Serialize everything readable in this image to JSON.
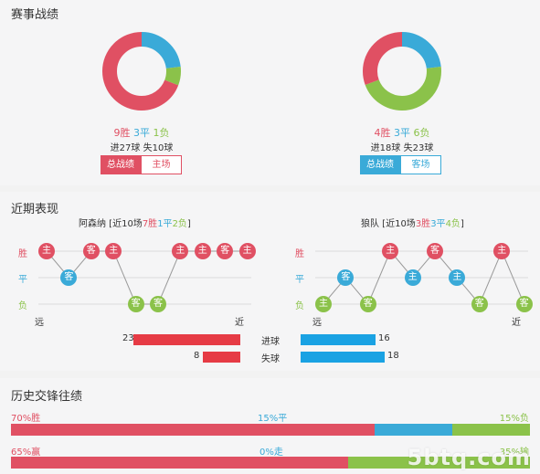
{
  "sections": {
    "overall": "赛事战绩",
    "recent": "近期表现",
    "history": "历史交锋往绩"
  },
  "home": {
    "wins": "9胜",
    "draws": "3平",
    "losses": "1负",
    "goals_for": "进27球",
    "goals_against": "失10球",
    "tab_total": "总战绩",
    "tab_venue": "主场",
    "donut": {
      "win": 9,
      "draw": 3,
      "loss": 1
    },
    "team_label": "阿森纳 [近10场",
    "recent_w": "7胜",
    "recent_d": "1平",
    "recent_l": "2负",
    "recent_end": "]",
    "form": [
      "W",
      "D",
      "W",
      "W",
      "L",
      "L",
      "W",
      "W",
      "W",
      "W"
    ],
    "venue": [
      "主",
      "客",
      "客",
      "主",
      "客",
      "客",
      "主",
      "主",
      "客",
      "主"
    ],
    "goals_for_num": 23,
    "goals_against_num": 8
  },
  "away": {
    "wins": "4胜",
    "draws": "3平",
    "losses": "6负",
    "goals_for": "进18球",
    "goals_against": "失23球",
    "tab_total": "总战绩",
    "tab_venue": "客场",
    "donut": {
      "win": 4,
      "draw": 3,
      "loss": 6
    },
    "team_label": "狼队 [近10场",
    "recent_w": "3胜",
    "recent_d": "3平",
    "recent_l": "4负",
    "recent_end": "]",
    "form": [
      "L",
      "D",
      "L",
      "W",
      "D",
      "W",
      "D",
      "L",
      "W",
      "L"
    ],
    "venue": [
      "主",
      "客",
      "客",
      "主",
      "主",
      "客",
      "主",
      "客",
      "主",
      "客"
    ],
    "goals_for_num": 16,
    "goals_against_num": 18
  },
  "row_labels": {
    "win": "胜",
    "draw": "平",
    "loss": "负"
  },
  "axis": {
    "far": "远",
    "near": "近"
  },
  "bar_labels": {
    "scored": "进球",
    "conceded": "失球"
  },
  "history": {
    "row1": {
      "left": "70%胜",
      "mid": "15%平",
      "right": "15%负",
      "w": 70,
      "d": 15,
      "l": 15
    },
    "row2": {
      "left": "65%赢",
      "mid": "0%走",
      "right": "35%输",
      "w": 65,
      "d": 0,
      "l": 35
    }
  },
  "colors": {
    "win": "#e05063",
    "draw": "#3aaad8",
    "loss": "#8bc24a"
  },
  "watermark": "5btq.com"
}
